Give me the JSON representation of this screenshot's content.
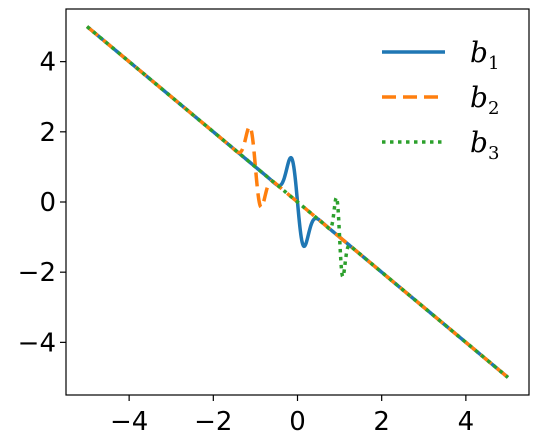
{
  "chart_data": {
    "type": "line",
    "title": "",
    "xlabel": "",
    "ylabel": "",
    "xlim": [
      -5.5,
      5.5
    ],
    "ylim": [
      -5.5,
      5.5
    ],
    "xticks": [
      -4,
      -2,
      0,
      2,
      4
    ],
    "yticks": [
      -4,
      -2,
      0,
      2,
      4
    ],
    "xtick_labels": [
      "−4",
      "−2",
      "0",
      "2",
      "4"
    ],
    "ytick_labels": [
      "−4",
      "−2",
      "0",
      "2",
      "4"
    ],
    "grid": false,
    "legend_placement": "top-right",
    "series": [
      {
        "name": "b1",
        "legend_base": "b",
        "legend_sub": "1",
        "color": "#1f77b4",
        "style": "solid",
        "bump": {
          "center": 0.0,
          "amplitude": 1.9,
          "width": 0.18,
          "frequency": 6.5
        },
        "x": [
          -5,
          -0.6,
          -0.4,
          -0.2,
          -0.1,
          0,
          0.1,
          0.2,
          0.3,
          0.4,
          0.6,
          5
        ],
        "y": [
          5,
          0.6,
          0.5,
          0.15,
          1.75,
          0.1,
          -1.75,
          -0.15,
          -0.3,
          -0.4,
          -0.6,
          -5
        ]
      },
      {
        "name": "b2",
        "legend_base": "b",
        "legend_sub": "2",
        "color": "#ff7f0e",
        "style": "dashed",
        "bump": {
          "center": -1.0,
          "amplitude": 1.7,
          "width": 0.16,
          "frequency": 7.5
        },
        "x": [
          -5,
          -1.4,
          -1.2,
          -1.05,
          -1.0,
          -0.95,
          -0.8,
          -0.6,
          5
        ],
        "y": [
          5,
          1.4,
          1.1,
          2.7,
          0.9,
          -0.6,
          0.8,
          0.6,
          -5
        ]
      },
      {
        "name": "b3",
        "legend_base": "b",
        "legend_sub": "3",
        "color": "#2ca02c",
        "style": "dotted",
        "bump": {
          "center": 1.0,
          "amplitude": 1.8,
          "width": 0.09,
          "frequency": 13
        },
        "x": [
          -5,
          0.7,
          0.9,
          0.95,
          1.0,
          1.05,
          1.1,
          1.3,
          5
        ],
        "y": [
          5,
          -0.7,
          0.8,
          -0.2,
          -1.0,
          -2.7,
          -1.1,
          -1.3,
          -5
        ]
      }
    ]
  }
}
